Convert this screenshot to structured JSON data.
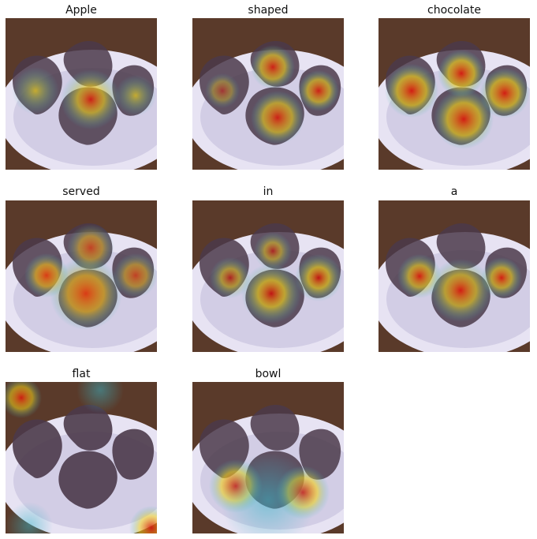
{
  "panels": [
    {
      "label": "Apple"
    },
    {
      "label": "shaped"
    },
    {
      "label": "chocolate"
    },
    {
      "label": "served"
    },
    {
      "label": "in"
    },
    {
      "label": "a"
    },
    {
      "label": "flat"
    },
    {
      "label": "bowl"
    }
  ],
  "colors": {
    "background": "#ffffff",
    "table_wood": "#5a3a2a",
    "plate": "#e7e3f3",
    "plate_shadow": "#bdb7d7",
    "fruit_dark": "#4b3a4a",
    "heat_hot": "#d81a10",
    "heat_mid": "#f2d21a",
    "heat_cool": "#39b6c8"
  }
}
